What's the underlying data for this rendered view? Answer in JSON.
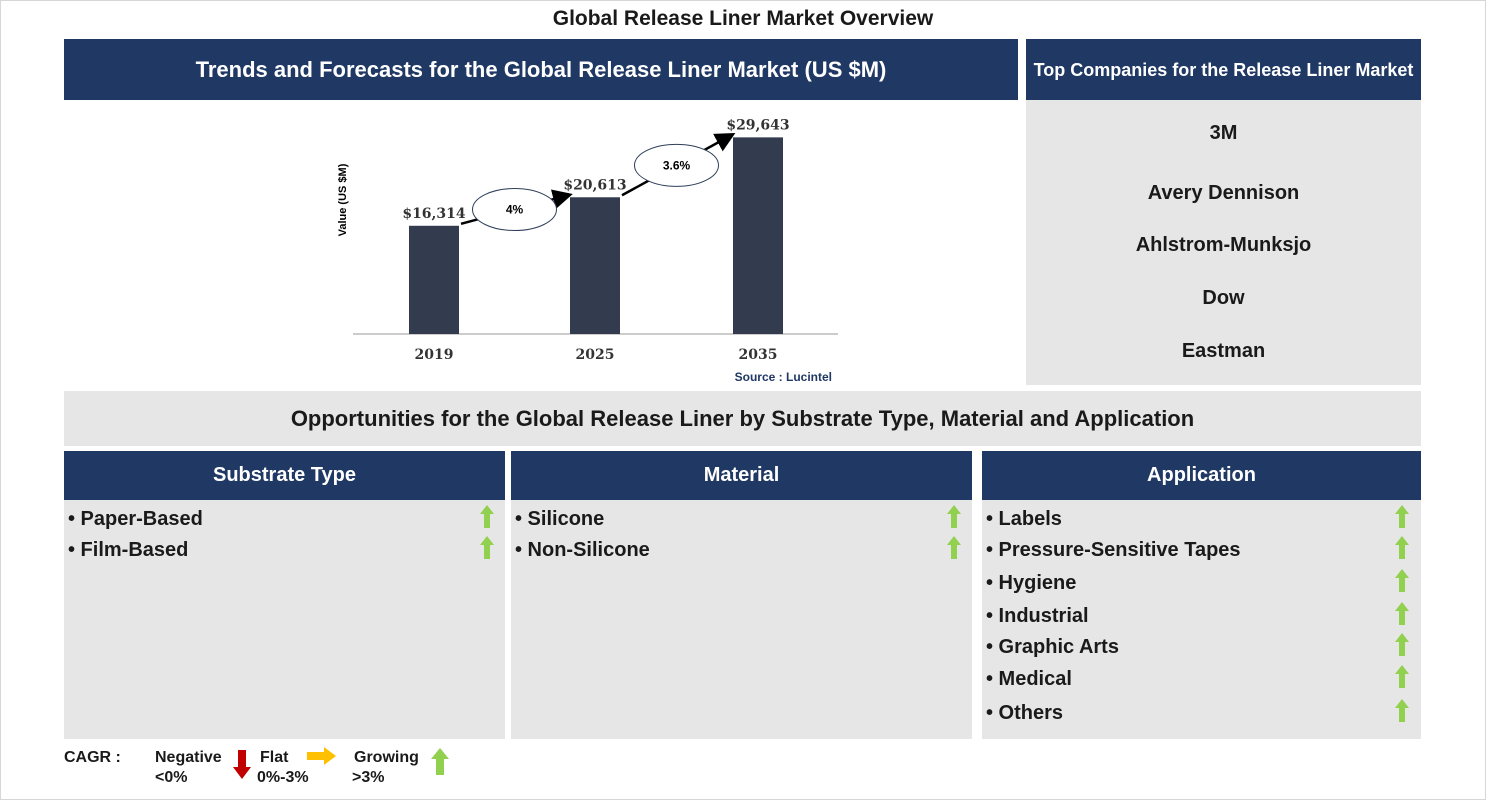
{
  "title": "Global Release Liner Market Overview",
  "trend_header": "Trends and Forecasts for the Global Release Liner Market (US $M)",
  "chart_data": {
    "type": "bar",
    "categories": [
      "2019",
      "2025",
      "2035"
    ],
    "values": [
      16314,
      20613,
      29643
    ],
    "value_labels": [
      "$16,314",
      "$20,613",
      "$29,643"
    ],
    "ylabel": "Value (US $M)",
    "cagr_labels": [
      "4%",
      "3.6%"
    ],
    "source": "Source : Lucintel",
    "bar_color": "#323c4e",
    "ylim": [
      0,
      30000
    ],
    "grid": false
  },
  "companies_header": "Top Companies for the Release Liner Market",
  "companies": [
    "3M",
    "Avery Dennison",
    "Ahlstrom-Munksjo",
    "Dow",
    "Eastman"
  ],
  "opportunities_header": "Opportunities for the Global Release Liner by Substrate Type, Material and Application",
  "segments": [
    {
      "title": "Substrate Type",
      "items": [
        "• Paper-Based",
        "• Film-Based"
      ],
      "trend": "growing"
    },
    {
      "title": "Material",
      "items": [
        "• Silicone",
        "• Non-Silicone"
      ],
      "trend": "growing"
    },
    {
      "title": "Application",
      "items": [
        "• Labels",
        "• Pressure-Sensitive Tapes",
        "• Hygiene",
        "• Industrial",
        "• Graphic Arts",
        "• Medical",
        "• Others"
      ],
      "trend": "growing"
    }
  ],
  "legend": {
    "label": "CAGR :",
    "negative": "Negative",
    "negative_range": "<0%",
    "flat": "Flat",
    "flat_range": "0%-3%",
    "growing": "Growing",
    "growing_range": ">3%"
  },
  "colors": {
    "navy": "#1f3864",
    "panel_grey": "#e7e6e6",
    "growing": "#92d050",
    "flat": "#ffc000",
    "negative": "#c00000"
  }
}
